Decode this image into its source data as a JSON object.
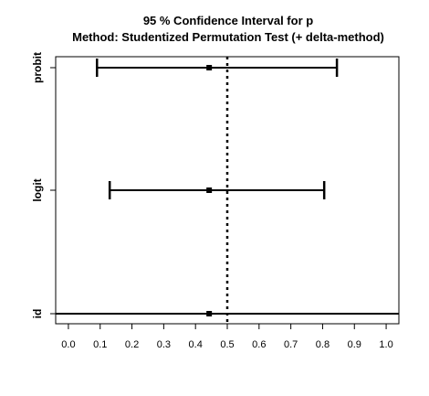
{
  "chart_data": {
    "type": "forest",
    "title": "95 % Confidence Interval for p",
    "subtitle": "Method: Studentized Permutation Test (+ delta-method)",
    "categories": [
      "id",
      "logit",
      "probit"
    ],
    "series": [
      {
        "category": "probit",
        "estimate": 0.443,
        "lower": 0.09,
        "upper": 0.845
      },
      {
        "category": "logit",
        "estimate": 0.443,
        "lower": 0.13,
        "upper": 0.805
      },
      {
        "category": "id",
        "estimate": 0.443,
        "lower": -0.05,
        "upper": 1.05
      }
    ],
    "reference_line": 0.5,
    "xlim": [
      -0.04,
      1.04
    ],
    "xticks": [
      "0.0",
      "0.1",
      "0.2",
      "0.3",
      "0.4",
      "0.5",
      "0.6",
      "0.7",
      "0.8",
      "0.9",
      "1.0"
    ],
    "grid": false,
    "legend": "none"
  }
}
